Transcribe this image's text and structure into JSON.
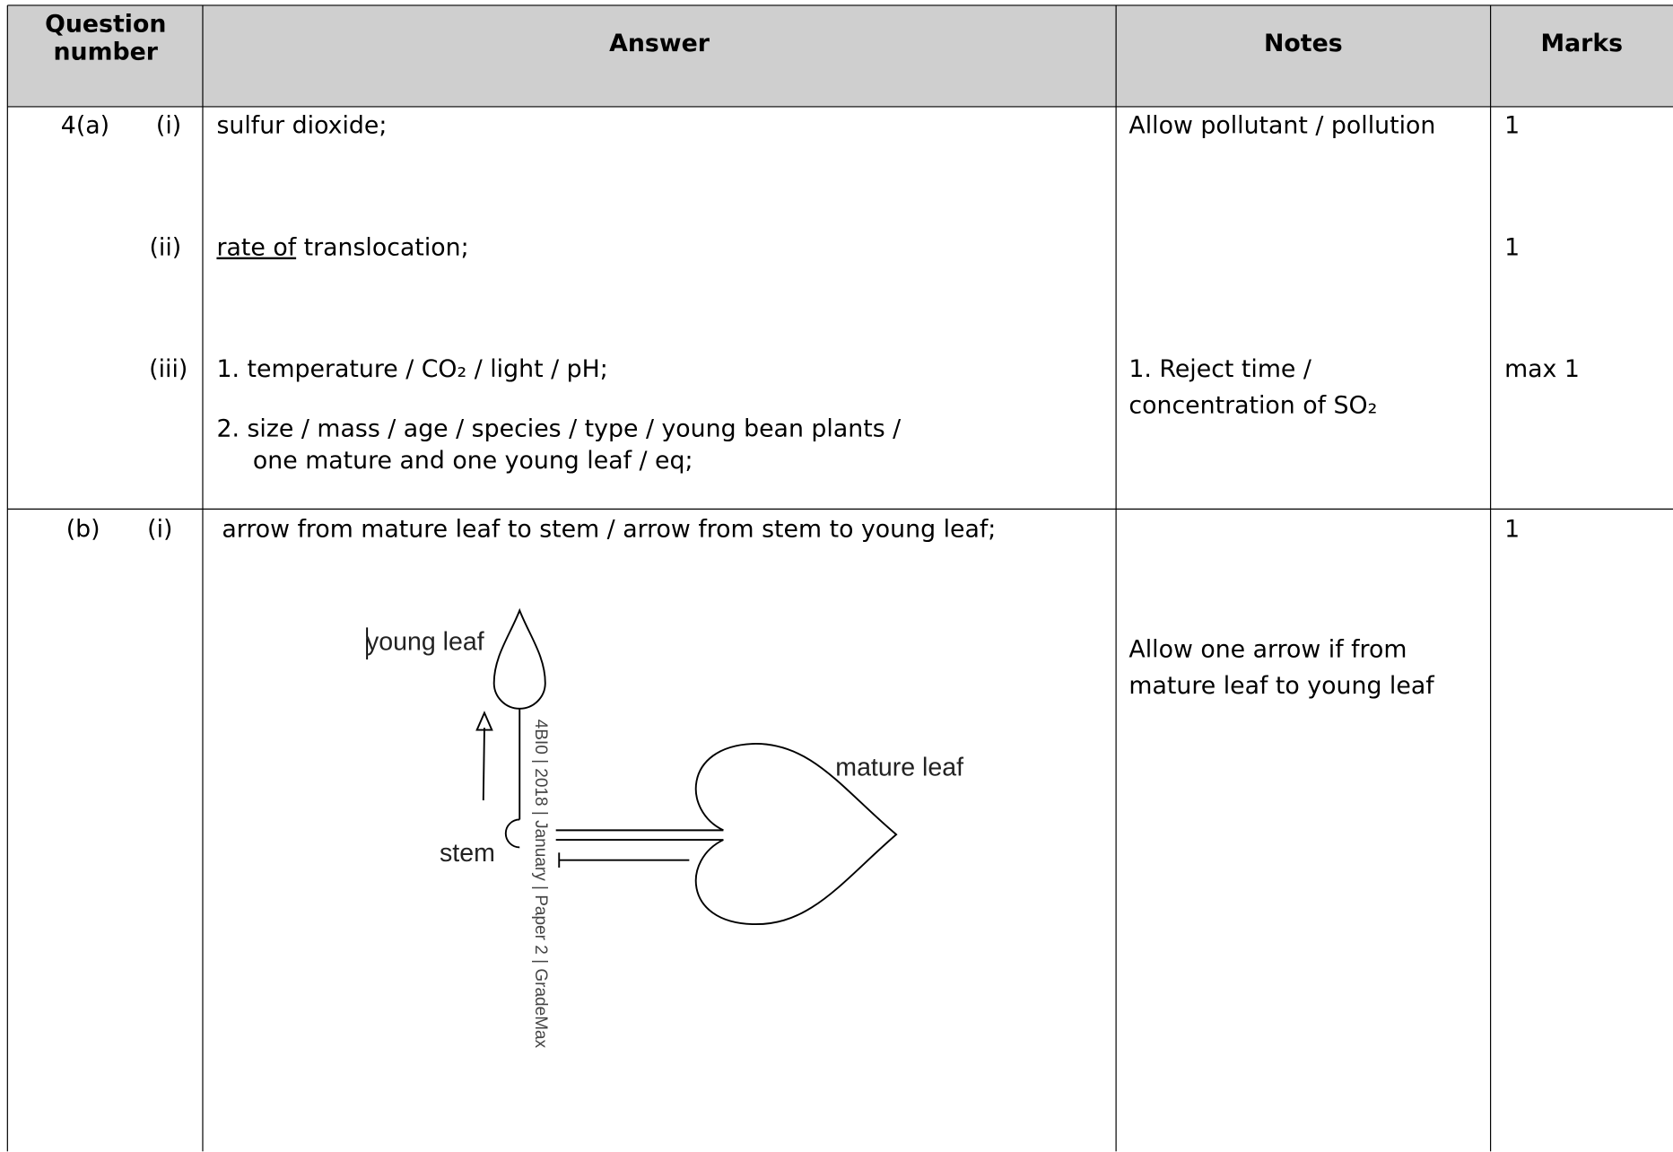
{
  "header": {
    "question_number": "Question number",
    "answer": "Answer",
    "notes": "Notes",
    "marks": "Marks"
  },
  "rows": [
    {
      "question": "4(a)",
      "parts": [
        {
          "part": "(i)",
          "answer": [
            "sulfur dioxide;"
          ],
          "notes": [
            "Allow pollutant / pollution"
          ],
          "marks": "1"
        },
        {
          "part": "(ii)",
          "answer_underlined": "rate of",
          "answer": [
            " translocation;"
          ],
          "marks": "1"
        },
        {
          "part": "(iii)",
          "answer": [
            "1. temperature / CO₂ / light / pH;",
            "2. size / mass / age / species / type / young bean plants /",
            "one mature and one young leaf / eq;"
          ],
          "notes": [
            "1. Reject time /",
            "concentration of SO₂"
          ],
          "marks": "max 1"
        }
      ]
    },
    {
      "question": "(b)",
      "parts": [
        {
          "part": "(i)",
          "answer": [
            "arrow from mature leaf to stem / arrow from stem to young leaf;"
          ],
          "notes": [
            "Allow one arrow if from",
            "mature leaf to young leaf"
          ],
          "marks": "1",
          "diagram": {
            "young_leaf": "young leaf",
            "mature_leaf": "mature leaf",
            "stem": "stem",
            "watermark": "4BI0 | 2018 | January | Paper 2 | GradeMax"
          }
        }
      ]
    }
  ]
}
